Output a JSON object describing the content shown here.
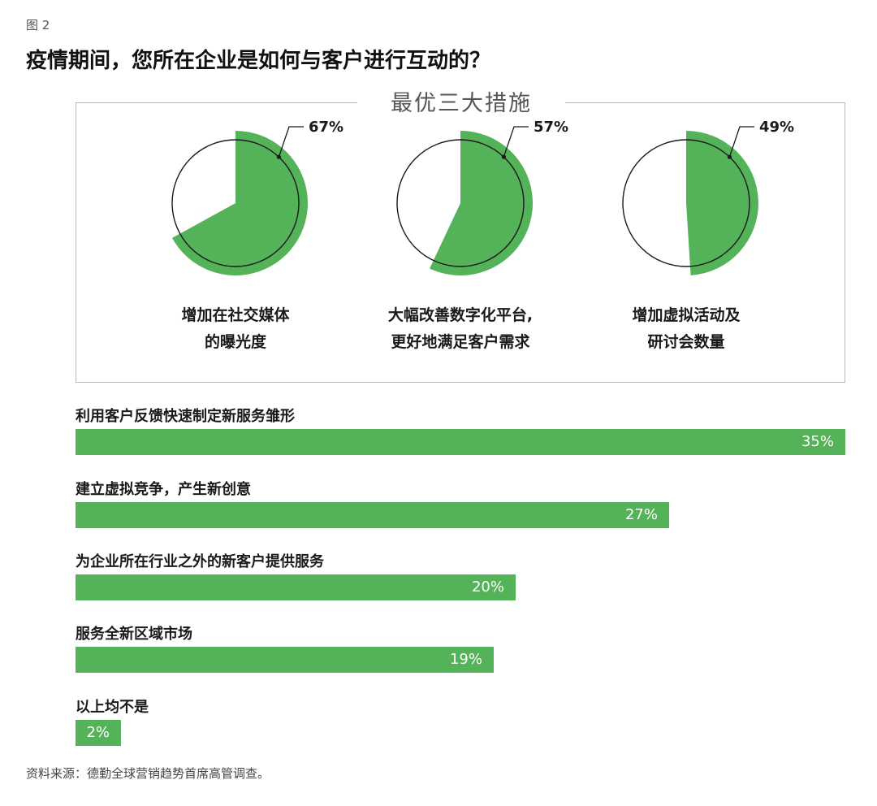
{
  "figure_label": "图 2",
  "title": "疫情期间，您所在企业是如何与客户进行互动的？",
  "source": "资料来源：德勤全球营销趋势首席高管调查。",
  "colors": {
    "accent": "#54b258",
    "bar_text": "#ffffff",
    "pie_outline": "#1a1a1a",
    "box_border": "#b9b9b9"
  },
  "chart_data": [
    {
      "type": "pie",
      "title": "最优三大措施",
      "items": [
        {
          "label_lines": [
            "增加在社交媒体",
            "的曝光度"
          ],
          "value": 67,
          "value_label": "67%"
        },
        {
          "label_lines": [
            "大幅改善数字化平台,",
            "更好地满足客户需求"
          ],
          "value": 57,
          "value_label": "57%"
        },
        {
          "label_lines": [
            "增加虚拟活动及",
            "研讨会数量"
          ],
          "value": 49,
          "value_label": "49%"
        }
      ]
    },
    {
      "type": "bar",
      "orientation": "horizontal",
      "categories": [
        "利用客户反馈快速制定新服务雏形",
        "建立虚拟竞争，产生新创意",
        "为企业所在行业之外的新客户提供服务",
        "服务全新区域市场",
        "以上均不是"
      ],
      "values": [
        35,
        27,
        20,
        19,
        2
      ],
      "value_labels": [
        "35%",
        "27%",
        "20%",
        "19%",
        "2%"
      ]
    }
  ]
}
